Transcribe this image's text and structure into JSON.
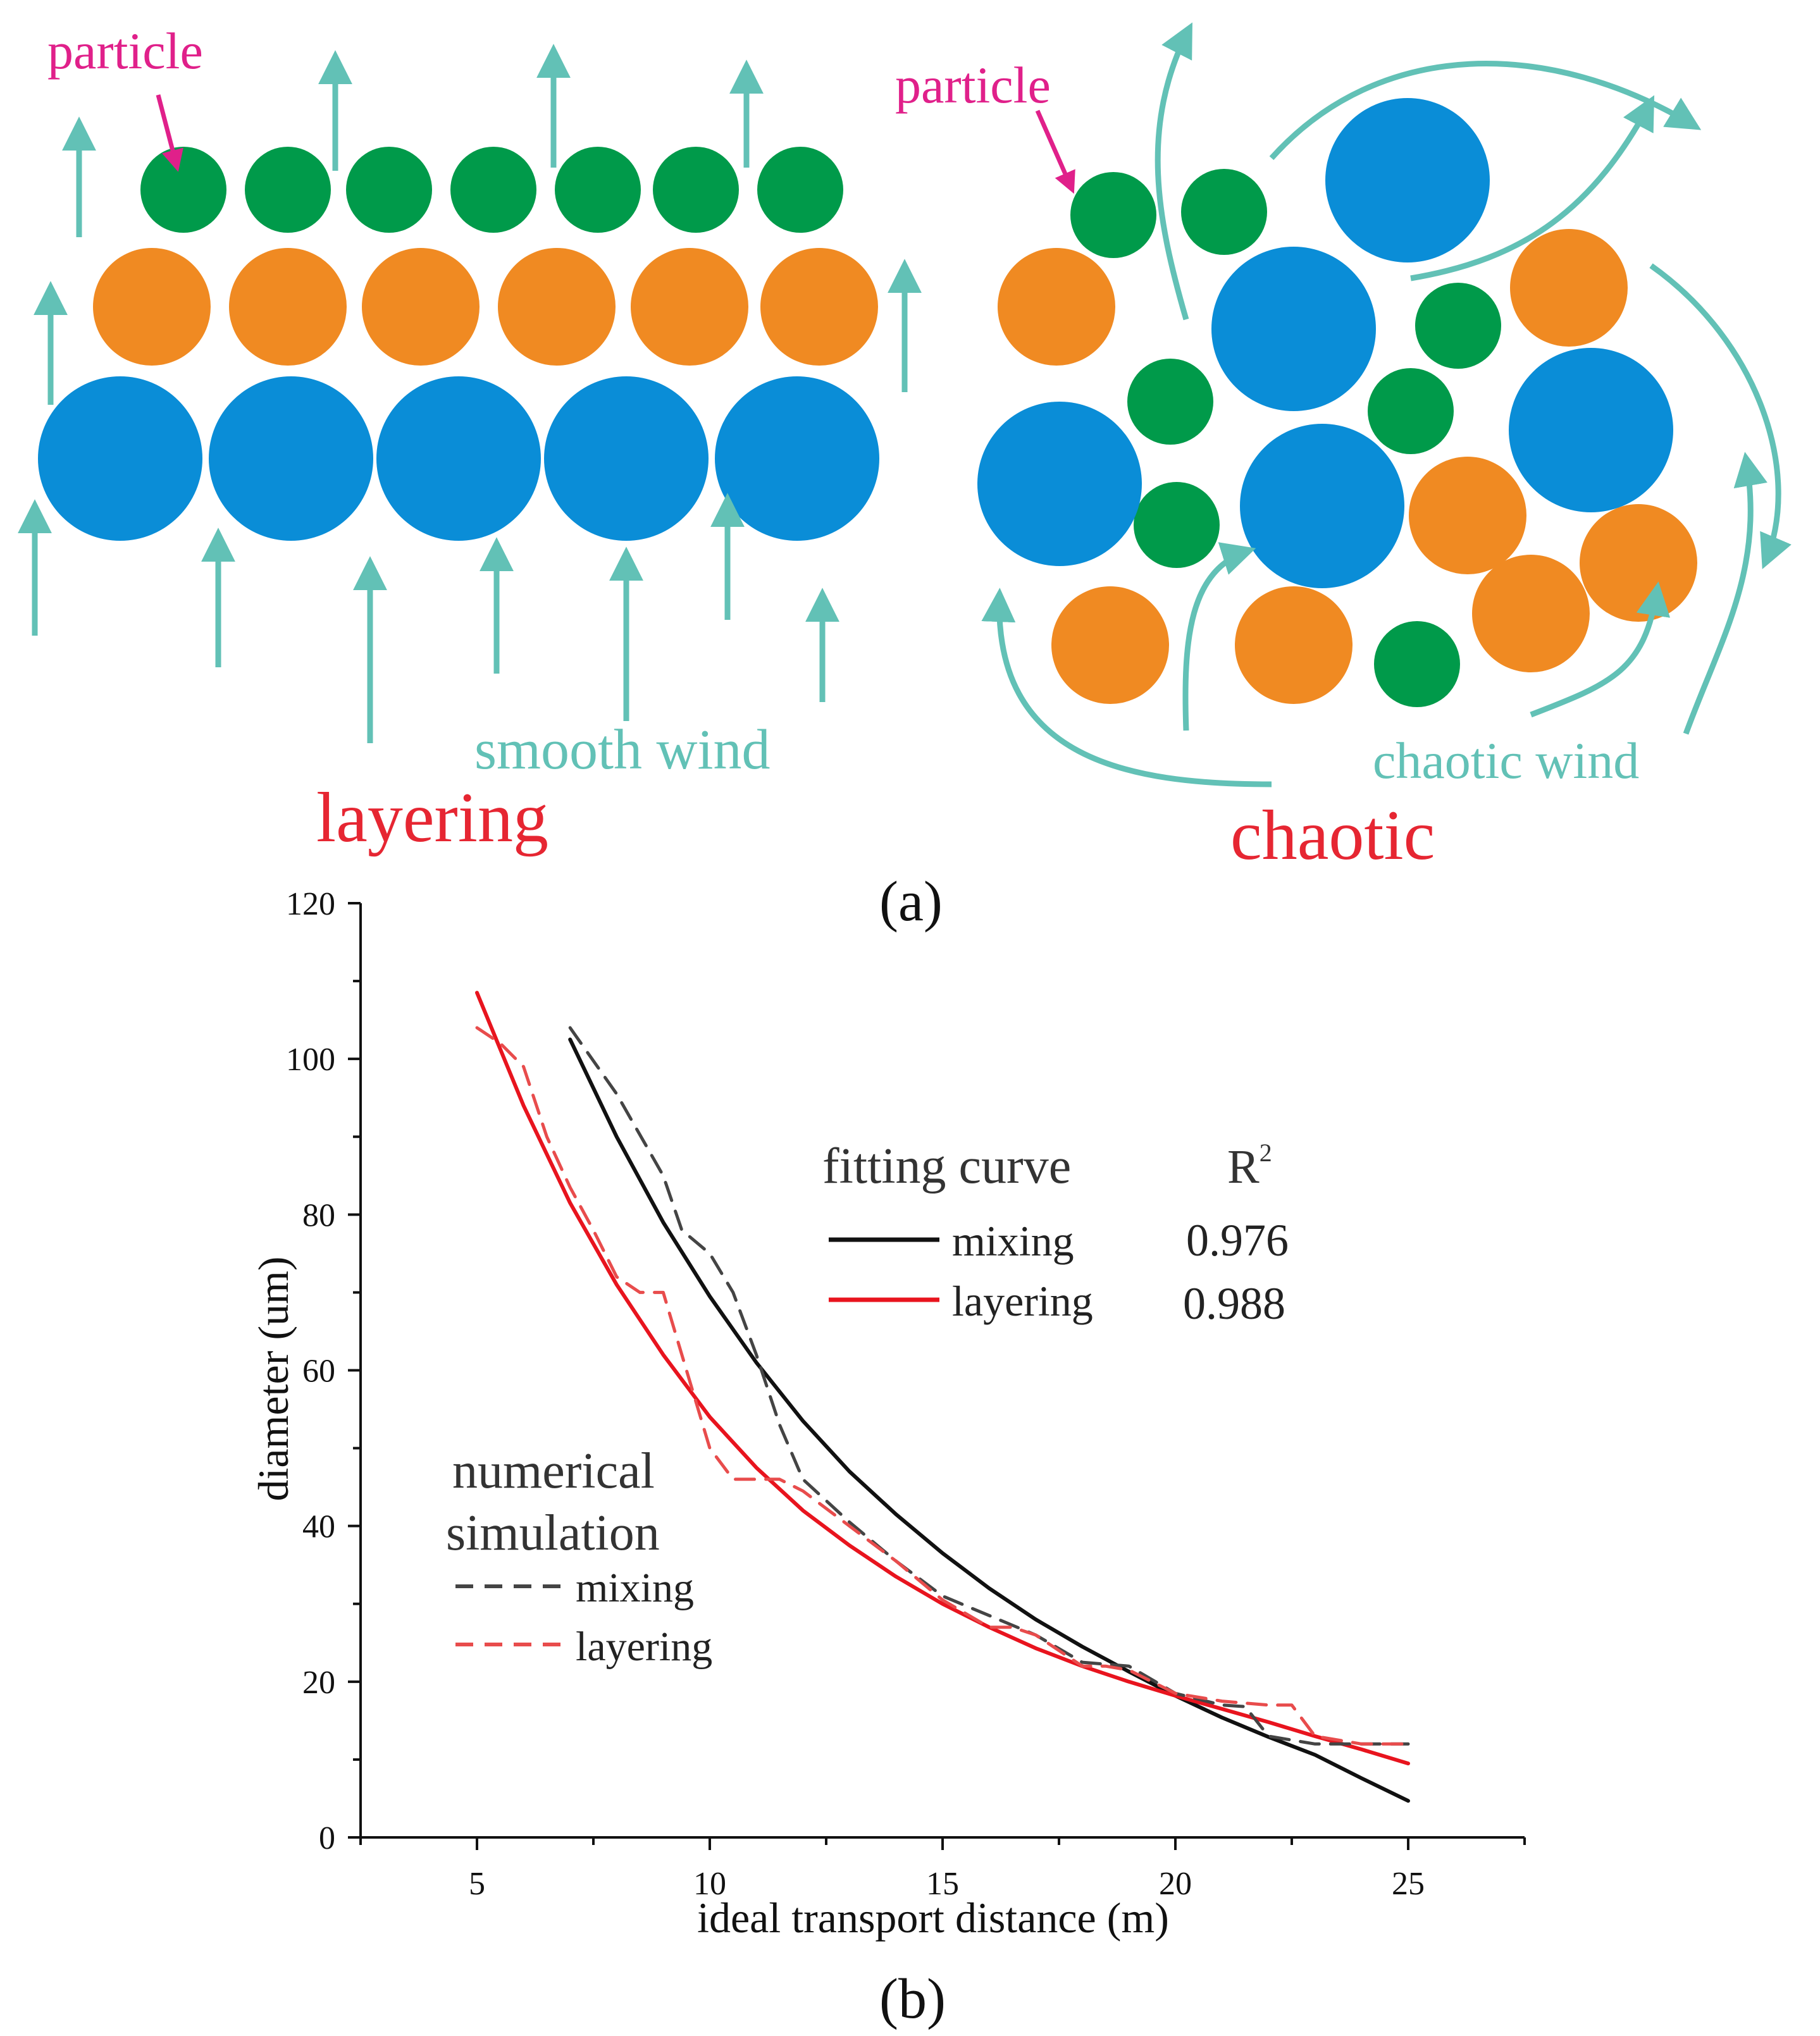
{
  "colors": {
    "blue": "#0a8dd7",
    "orange": "#f08a22",
    "green": "#009a4a",
    "wind": "#62c1b6",
    "magenta": "#e0208a",
    "red_label": "#e62632",
    "black": "#111111",
    "fit_red": "#e8141e",
    "sim_gray": "#444444",
    "sim_red": "#e84c4c"
  },
  "panel_a": {
    "left": {
      "particle_label": "particle",
      "wind_label": "smooth wind",
      "mode_label": "layering"
    },
    "right": {
      "particle_label": "particle",
      "wind_label": "chaotic wind",
      "mode_label": "chaotic"
    },
    "caption": "(a)"
  },
  "panel_b": {
    "caption": "(b)",
    "legend_fit": {
      "title": "fitting curve",
      "r2_header": "R",
      "r2_sup": "2",
      "items": [
        {
          "label": "mixing",
          "r2": "0.976"
        },
        {
          "label": "layering",
          "r2": "0.988"
        }
      ]
    },
    "legend_sim": {
      "title_line1": "numerical",
      "title_line2": "simulation",
      "items": [
        {
          "label": "mixing"
        },
        {
          "label": "layering"
        }
      ]
    }
  },
  "chart_data": {
    "type": "line",
    "xlabel": "ideal transport distance (m)",
    "ylabel": "diameter (um)",
    "xlim": [
      2.5,
      27.5
    ],
    "ylim": [
      0,
      120
    ],
    "xticks": [
      5,
      10,
      15,
      20,
      25
    ],
    "yticks": [
      0,
      20,
      40,
      60,
      80,
      100,
      120
    ],
    "grid": false,
    "series": [
      {
        "name": "mixing",
        "group": "fitting curve",
        "style": "solid",
        "x": [
          7,
          8,
          9,
          10,
          11,
          12,
          13,
          14,
          15,
          16,
          17,
          18,
          19,
          20,
          21,
          22,
          23,
          24,
          25
        ],
        "y": [
          102.5,
          90,
          79,
          69.5,
          61,
          53.5,
          47,
          41.5,
          36.5,
          32,
          28,
          24.5,
          21.3,
          18.2,
          15.4,
          12.9,
          10.6,
          7.6,
          4.7
        ]
      },
      {
        "name": "layering",
        "group": "fitting curve",
        "style": "solid",
        "x": [
          5,
          6,
          7,
          8,
          9,
          10,
          11,
          12,
          13,
          14,
          15,
          16,
          17,
          18,
          19,
          20,
          21,
          22,
          23,
          24,
          25
        ],
        "y": [
          108.5,
          94,
          81.5,
          71,
          62,
          54,
          47.5,
          42,
          37.5,
          33.5,
          30,
          27,
          24.3,
          22,
          20,
          18.2,
          16.5,
          14.8,
          13,
          11.3,
          9.5
        ]
      },
      {
        "name": "mixing",
        "group": "numerical simulation",
        "style": "dashed",
        "x": [
          7,
          8,
          9,
          9.4,
          10,
          10.5,
          11,
          11.5,
          12,
          13,
          14,
          15,
          16,
          17,
          18,
          19,
          20,
          21,
          21.5,
          22,
          23,
          24,
          25
        ],
        "y": [
          104,
          95.5,
          85,
          78,
          75,
          70,
          62,
          53,
          46,
          40.5,
          35.5,
          31,
          28.5,
          26,
          22.5,
          22,
          18.5,
          17,
          16.8,
          13,
          12,
          12,
          12
        ]
      },
      {
        "name": "layering",
        "group": "numerical simulation",
        "style": "dashed",
        "x": [
          5,
          5.5,
          6,
          6.5,
          7,
          7.5,
          8,
          8.5,
          9,
          9.5,
          10,
          10.5,
          11,
          11.5,
          12,
          13,
          14,
          15,
          16,
          16.5,
          17,
          17.5,
          18,
          18.5,
          19,
          20,
          21,
          22,
          22.5,
          23,
          24,
          25
        ],
        "y": [
          104,
          102,
          99,
          90,
          83.5,
          78,
          72,
          70,
          70,
          60,
          50,
          46,
          46,
          46,
          44.5,
          40,
          35.5,
          30.5,
          27,
          27,
          26,
          24,
          22,
          22,
          21.5,
          18.5,
          17.5,
          17,
          17,
          13,
          12,
          12
        ]
      }
    ]
  }
}
